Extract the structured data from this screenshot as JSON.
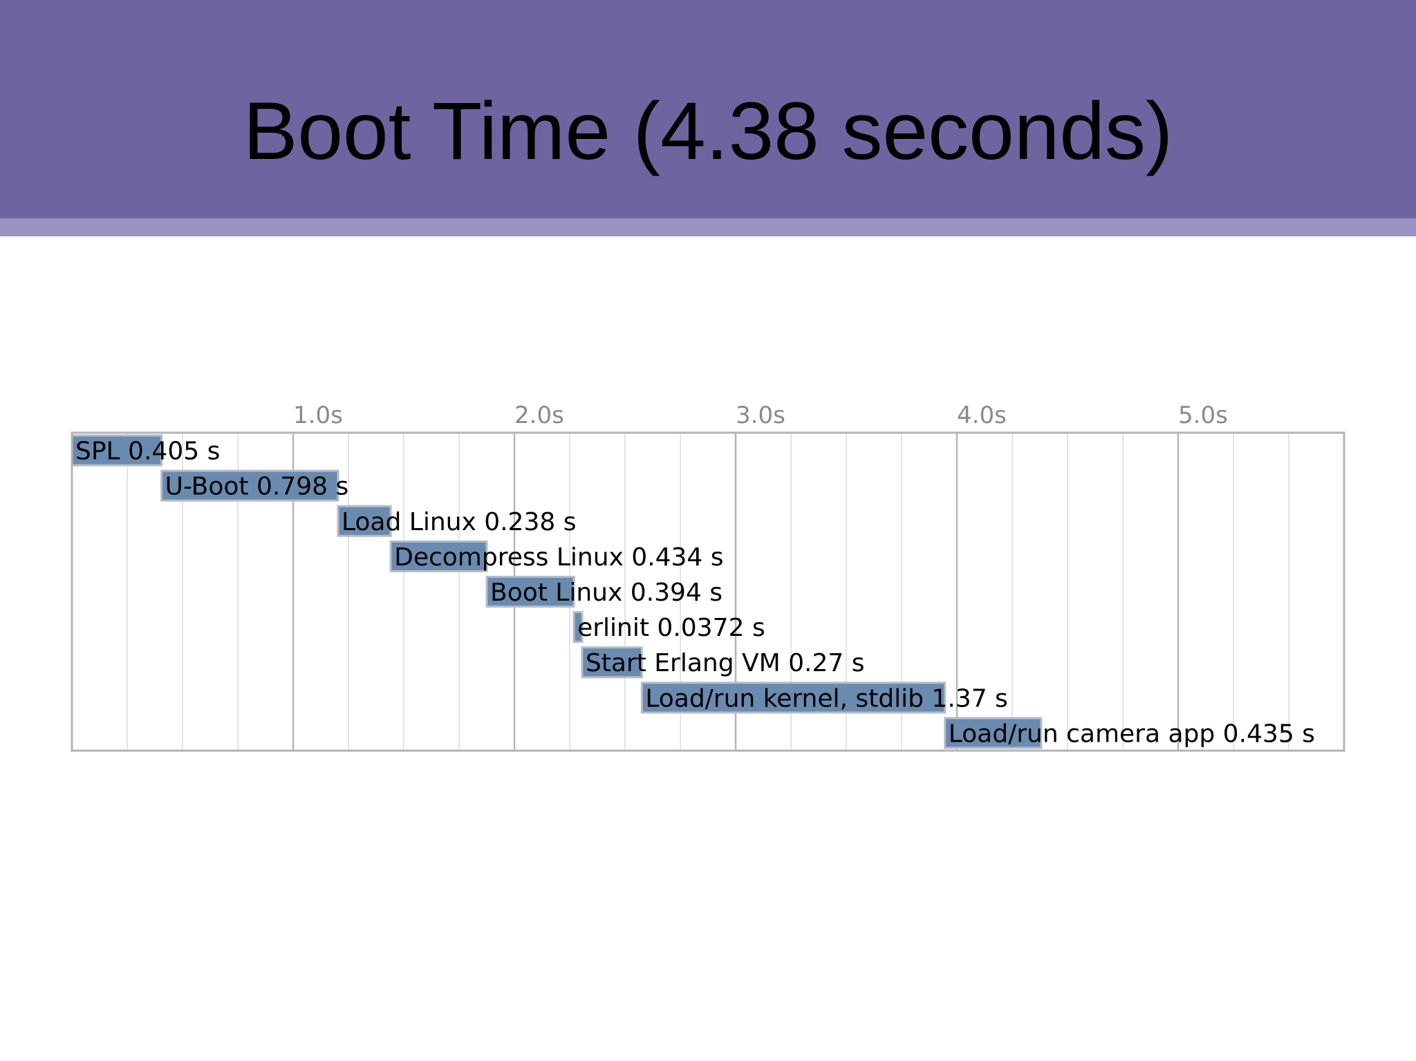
{
  "slide": {
    "title": "Boot Time (4.38 seconds)"
  },
  "colors": {
    "header": "#6f64a0",
    "header_stripe": "#9c93c3",
    "bar_fill": "#6a8bb0",
    "bar_stroke": "#b8bcc8",
    "grid_major": "#b5b5b5",
    "grid_minor": "#e4e4e4",
    "tick_text": "#8a8a8a"
  },
  "chart_data": {
    "type": "gantt",
    "title": "",
    "xlabel": "",
    "ylabel": "",
    "xlim": [
      0,
      5.75
    ],
    "x_ticks": [
      {
        "value": 1.0,
        "label": "1.0s"
      },
      {
        "value": 2.0,
        "label": "2.0s"
      },
      {
        "value": 3.0,
        "label": "3.0s"
      },
      {
        "value": 4.0,
        "label": "4.0s"
      },
      {
        "value": 5.0,
        "label": "5.0s"
      }
    ],
    "minor_step": 0.25,
    "grid": true,
    "tasks": [
      {
        "name": "SPL",
        "start": 0.0,
        "duration": 0.405,
        "label": "SPL 0.405 s"
      },
      {
        "name": "U-Boot",
        "start": 0.405,
        "duration": 0.798,
        "label": "U-Boot 0.798 s"
      },
      {
        "name": "Load Linux",
        "start": 1.203,
        "duration": 0.238,
        "label": "Load Linux 0.238 s"
      },
      {
        "name": "Decompress Linux",
        "start": 1.441,
        "duration": 0.434,
        "label": "Decompress Linux 0.434 s"
      },
      {
        "name": "Boot Linux",
        "start": 1.875,
        "duration": 0.394,
        "label": "Boot Linux 0.394 s"
      },
      {
        "name": "erlinit",
        "start": 2.269,
        "duration": 0.0372,
        "label": "erlinit 0.0372 s"
      },
      {
        "name": "Start Erlang VM",
        "start": 2.306,
        "duration": 0.27,
        "label": "Start Erlang VM 0.27 s"
      },
      {
        "name": "Load/run kernel, stdlib",
        "start": 2.576,
        "duration": 1.37,
        "label": "Load/run kernel, stdlib 1.37 s"
      },
      {
        "name": "Load/run camera app",
        "start": 3.946,
        "duration": 0.435,
        "label": "Load/run camera app 0.435 s"
      }
    ]
  }
}
